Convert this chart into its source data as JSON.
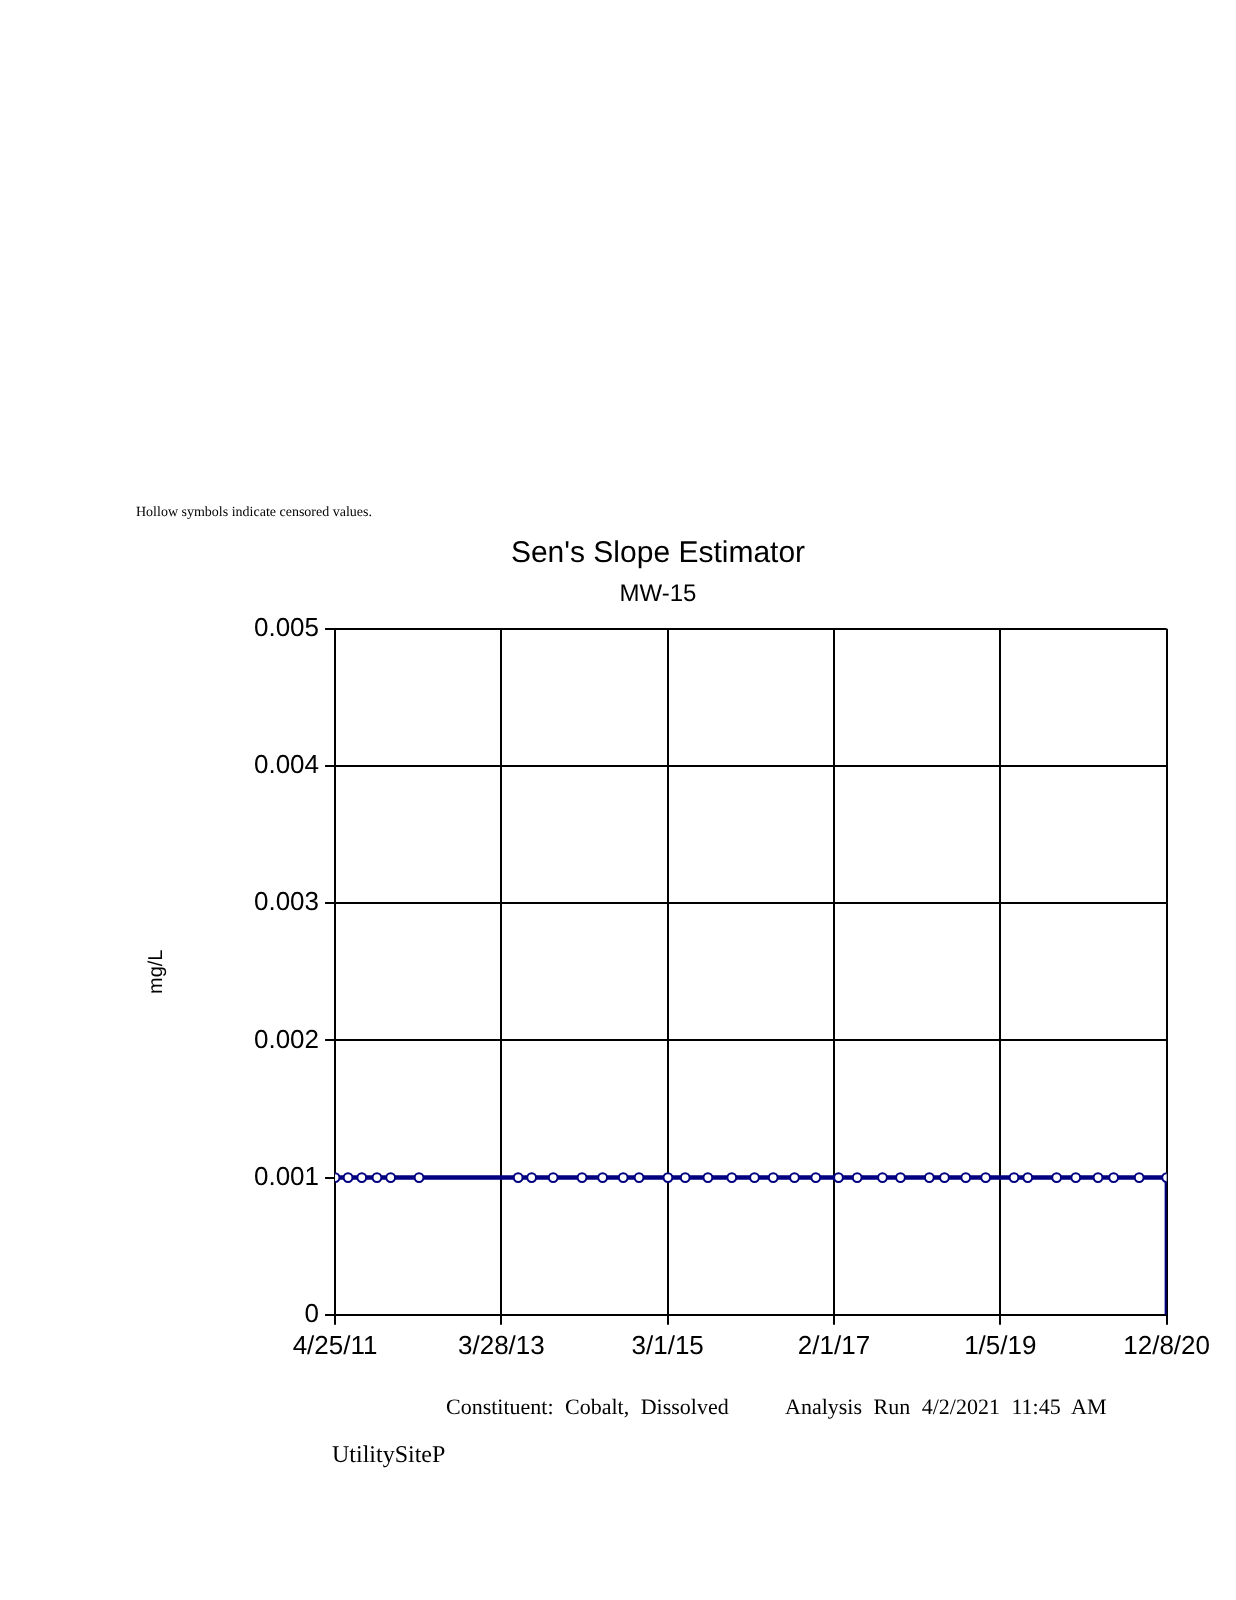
{
  "chart_data": {
    "type": "line",
    "title": "Sen's Slope Estimator",
    "subtitle": "MW-15",
    "ylabel": "mg/L",
    "annotations": [
      "Hollow symbols indicate censored values.",
      "Constituent: Cobalt, Dissolved     Analysis Run 4/2/2021 11:45 AM",
      "UtilitySiteP"
    ],
    "x": [
      "2011-04-25",
      "2011-06-19",
      "2011-08-16",
      "2011-10-19",
      "2011-12-16",
      "2012-04-14",
      "2013-06-07",
      "2013-08-03",
      "2013-11-02",
      "2014-03-04",
      "2014-05-30",
      "2014-08-25",
      "2014-10-31",
      "2015-03-02",
      "2015-05-14",
      "2015-08-18",
      "2015-11-27",
      "2016-03-02",
      "2016-05-20",
      "2016-08-18",
      "2016-11-16",
      "2017-02-20",
      "2017-05-10",
      "2017-08-25",
      "2017-11-09",
      "2018-03-11",
      "2018-05-14",
      "2018-08-12",
      "2018-11-04",
      "2019-03-04",
      "2019-05-01",
      "2019-08-31",
      "2019-11-20",
      "2020-02-22",
      "2020-04-28",
      "2020-08-14",
      "2020-12-08"
    ],
    "series": [
      {
        "type": "line",
        "marker": "circle",
        "color": "#000080",
        "values": [
          0.001,
          0.001,
          0.001,
          0.001,
          0.001,
          0.001,
          0.001,
          0.001,
          0.001,
          0.001,
          0.001,
          0.001,
          0.001,
          0.001,
          0.001,
          0.001,
          0.001,
          0.001,
          0.001,
          0.001,
          0.001,
          0.001,
          0.001,
          0.001,
          0.001,
          0.001,
          0.001,
          0.001,
          0.001,
          0.001,
          0.001,
          0.001,
          0.001,
          0.001,
          0.001,
          0.001,
          0.001
        ]
      },
      {
        "type": "line",
        "marker": "none",
        "color": "#000080",
        "x": [
          "2011-04-25",
          "2020-12-08",
          "2020-12-08"
        ],
        "values": [
          0.001,
          0.001,
          0
        ]
      }
    ],
    "xlim": [
      "2011-04-25",
      "2020-12-08"
    ],
    "xticks": [
      {
        "value": "2011-04-25",
        "label": "4/25/11"
      },
      {
        "value": "2013-03-28",
        "label": "3/28/13"
      },
      {
        "value": "2015-03-01",
        "label": "3/1/15"
      },
      {
        "value": "2017-02-01",
        "label": "2/1/17"
      },
      {
        "value": "2019-01-05",
        "label": "1/5/19"
      },
      {
        "value": "2020-12-08",
        "label": "12/8/20"
      }
    ],
    "ylim": [
      0,
      0.005
    ],
    "yticks": [
      0,
      0.001,
      0.002,
      0.003,
      0.004,
      0.005
    ],
    "grid": true,
    "legend": false
  }
}
